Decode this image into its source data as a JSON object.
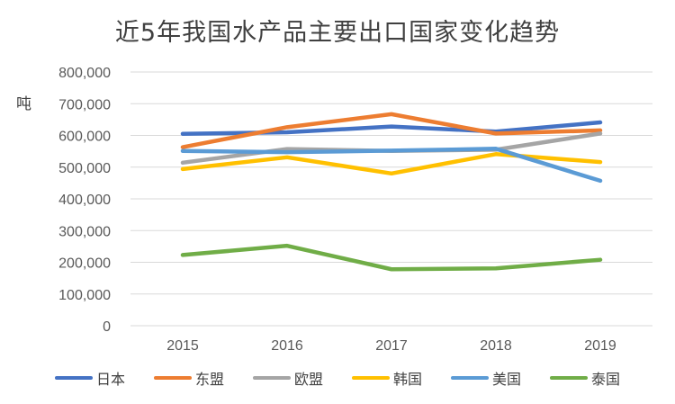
{
  "chart_data": {
    "type": "line",
    "title": "近5年我国水产品主要出口国家变化趋势",
    "ylabel": "吨",
    "xlabel": "",
    "categories": [
      "2015",
      "2016",
      "2017",
      "2018",
      "2019"
    ],
    "ylim": [
      0,
      800000
    ],
    "yticks": [
      0,
      100000,
      200000,
      300000,
      400000,
      500000,
      600000,
      700000,
      800000
    ],
    "ytick_labels": [
      "0",
      "100,000",
      "200,000",
      "300,000",
      "400,000",
      "500,000",
      "600,000",
      "700,000",
      "800,000"
    ],
    "grid": true,
    "legend_position": "bottom",
    "series": [
      {
        "name": "日本",
        "color": "#4472C4",
        "values": [
          605000,
          610000,
          628000,
          612000,
          641000
        ]
      },
      {
        "name": "东盟",
        "color": "#ED7D31",
        "values": [
          563000,
          626000,
          667000,
          606000,
          616000
        ]
      },
      {
        "name": "欧盟",
        "color": "#A5A5A5",
        "values": [
          514000,
          557000,
          551000,
          555000,
          606000
        ]
      },
      {
        "name": "韩国",
        "color": "#FFC000",
        "values": [
          494000,
          531000,
          480000,
          541000,
          516000
        ]
      },
      {
        "name": "美国",
        "color": "#5B9BD5",
        "values": [
          551000,
          547000,
          552000,
          558000,
          457000
        ]
      },
      {
        "name": "泰国",
        "color": "#70AD47",
        "values": [
          223000,
          252000,
          178000,
          181000,
          208000
        ]
      }
    ]
  }
}
